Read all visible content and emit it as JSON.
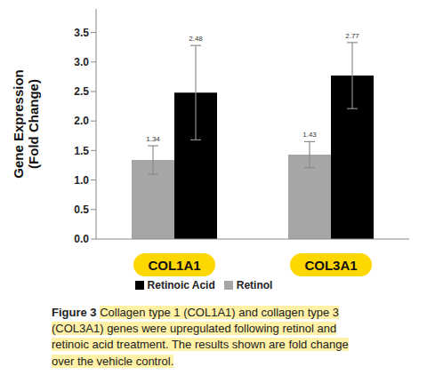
{
  "chart_data": {
    "type": "bar",
    "y_label": "Gene Expression\n(Fold Change)",
    "categories": [
      "COL1A1",
      "COL3A1"
    ],
    "series": [
      {
        "name": "Retinol",
        "color": "#a6a6a6",
        "values": [
          1.34,
          1.43
        ],
        "errors": [
          0.24,
          0.22
        ]
      },
      {
        "name": "Retinoic Acid",
        "color": "#000000",
        "values": [
          2.48,
          2.77
        ],
        "errors": [
          0.8,
          0.56
        ]
      }
    ],
    "ylim": [
      0,
      3.9
    ],
    "yticks": [
      {
        "value": 0,
        "label": "0.0"
      },
      0.5,
      {
        "value": 1,
        "label": "1.0"
      },
      1.5,
      {
        "value": 2,
        "label": "2.0"
      },
      2.5,
      {
        "value": 3,
        "label": "3.0"
      },
      3.5
    ],
    "data_labels": true,
    "legend": "bottom"
  },
  "caption": {
    "label": "Figure 3",
    "text": "Collagen type 1 (COL1A1) and collagen type 3 (COL3A1) genes were upregulated following retinol and retinoic acid treatment. The results shown are fold change over the vehicle control."
  }
}
